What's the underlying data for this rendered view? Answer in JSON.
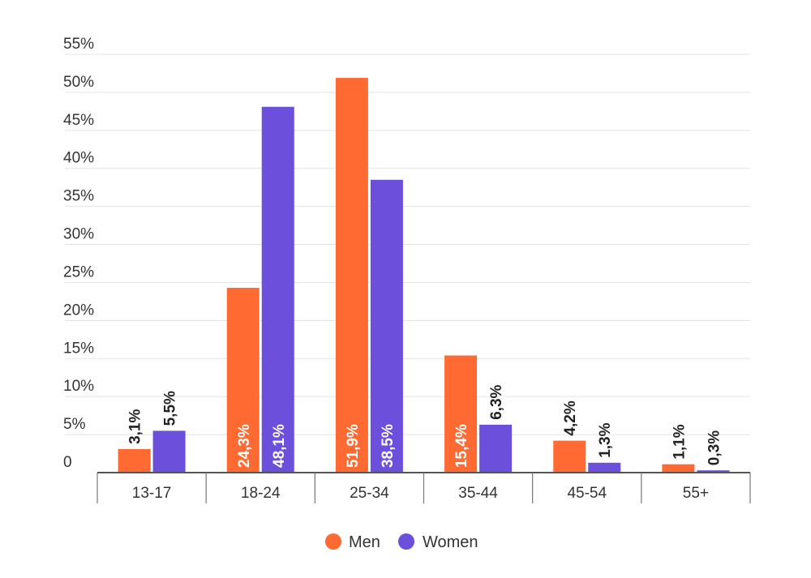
{
  "chart_data": {
    "type": "bar",
    "title": "",
    "xlabel": "",
    "ylabel": "",
    "categories": [
      "13-17",
      "18-24",
      "25-34",
      "35-44",
      "45-54",
      "55+"
    ],
    "ylim": [
      0,
      55
    ],
    "yticks": [
      0,
      5,
      10,
      15,
      20,
      25,
      30,
      35,
      40,
      45,
      50,
      55
    ],
    "ytick_labels": [
      "0",
      "5%",
      "10%",
      "15%",
      "20%",
      "25%",
      "30%",
      "35%",
      "40%",
      "45%",
      "50%",
      "55%"
    ],
    "grid": true,
    "legend": "bottom",
    "series": [
      {
        "name": "Men",
        "color": "#ff6a33",
        "values": [
          3.1,
          24.3,
          51.9,
          15.4,
          4.2,
          1.1
        ],
        "labels": [
          "3,1%",
          "24,3%",
          "51,9%",
          "15,4%",
          "4,2%",
          "1,1%"
        ]
      },
      {
        "name": "Women",
        "color": "#6c4fdb",
        "values": [
          5.5,
          48.1,
          38.5,
          6.3,
          1.3,
          0.3
        ],
        "labels": [
          "5,5%",
          "48,1%",
          "38,5%",
          "6,3%",
          "1,3%",
          "0,3%"
        ]
      }
    ]
  }
}
